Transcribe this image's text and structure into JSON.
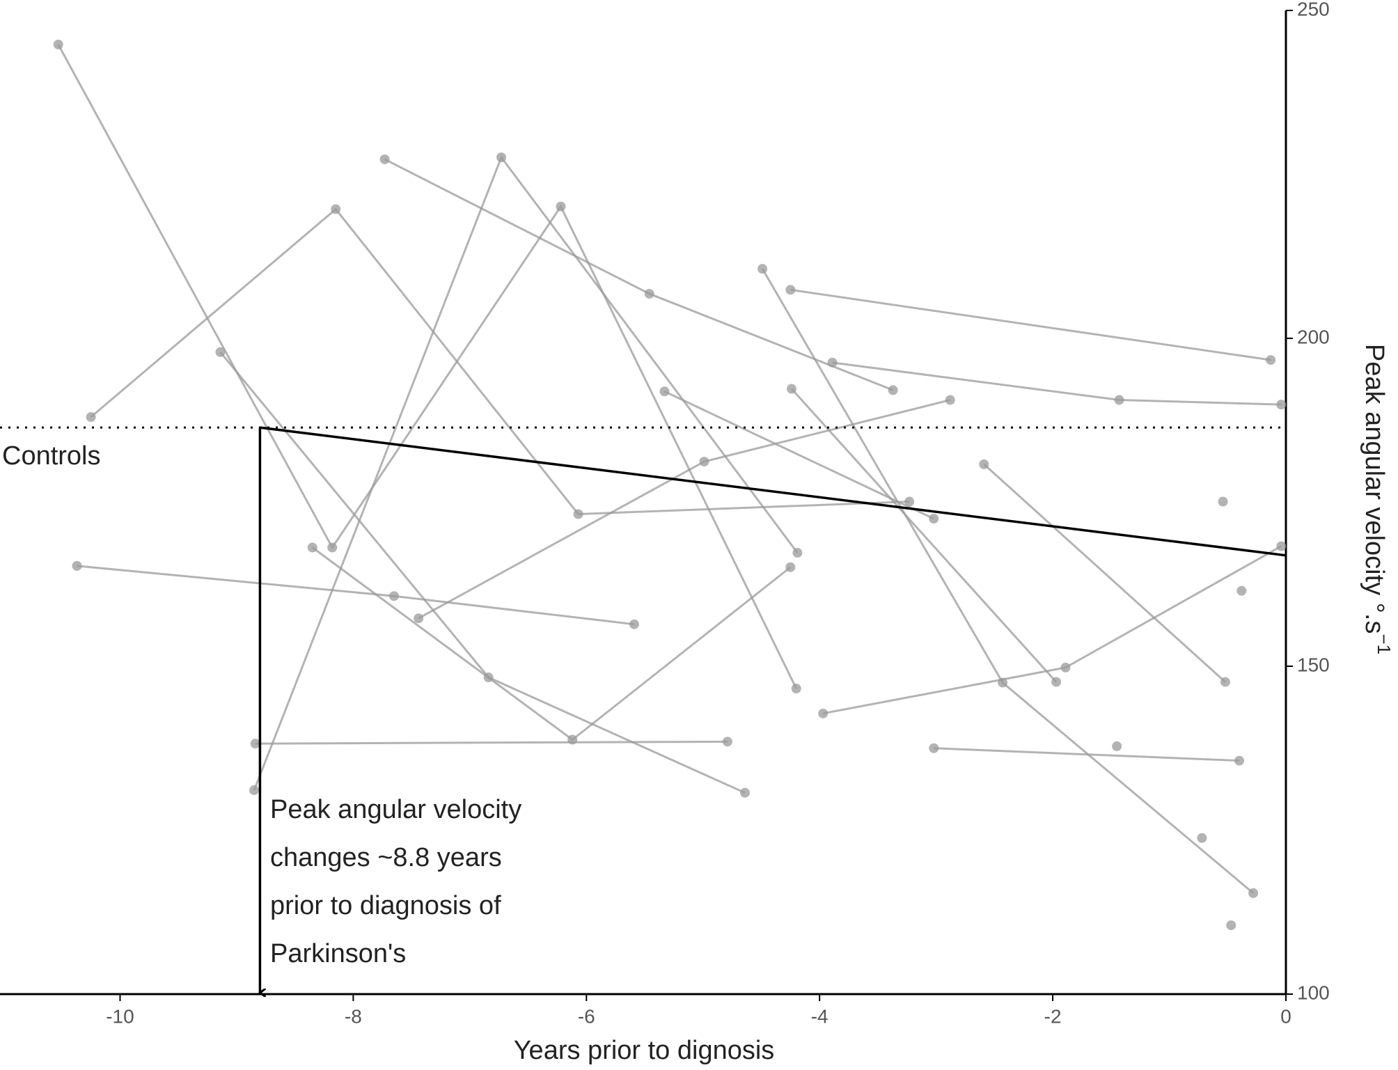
{
  "chart_data": {
    "type": "line",
    "x_label": "Years prior to dignosis",
    "y_label": "Peak angular velocity °.s",
    "y_label_superscript": "−1",
    "controls_label": "Controls",
    "annotation_lines": [
      "Peak angular velocity",
      "changes ~8.8 years",
      "prior to diagnosis of",
      "Parkinson's"
    ],
    "color": "#999999",
    "xlim": [
      -11.03,
      0
    ],
    "ylim": [
      100,
      250
    ],
    "xticks": [
      -10,
      -8,
      -6,
      -4,
      -2,
      0
    ],
    "yticks": [
      100,
      150,
      200,
      250
    ],
    "controls_y": 186.4,
    "fit": {
      "x": [
        -8.8,
        0
      ],
      "y": [
        186.4,
        166.9
      ]
    },
    "subjects": [
      {
        "x": [
          -10.53,
          -8.18,
          -6.22,
          -4.2
        ],
        "y": [
          244.8,
          168.1,
          220.1,
          146.6
        ]
      },
      {
        "x": [
          -10.25,
          -8.15,
          -6.07,
          -3.23
        ],
        "y": [
          188.0,
          219.7,
          173.2,
          175.1
        ]
      },
      {
        "x": [
          -9.14,
          -6.84,
          -4.64
        ],
        "y": [
          197.9,
          148.3,
          130.7
        ]
      },
      {
        "x": [
          -8.35,
          -6.12,
          -4.25
        ],
        "y": [
          168.1,
          138.8,
          165.1
        ]
      },
      {
        "x": [
          -7.73,
          -5.46,
          -3.37
        ],
        "y": [
          227.3,
          206.8,
          192.1
        ]
      },
      {
        "x": [
          -8.85,
          -6.73,
          -4.19
        ],
        "y": [
          131.1,
          227.6,
          167.3
        ]
      },
      {
        "x": [
          -4.49,
          -2.43,
          -0.28
        ],
        "y": [
          210.6,
          147.5,
          115.4
        ]
      },
      {
        "x": [
          -4.24,
          -1.97
        ],
        "y": [
          192.3,
          147.6
        ]
      },
      {
        "x": [
          -4.25,
          -0.13
        ],
        "y": [
          207.4,
          196.7
        ]
      },
      {
        "x": [
          -3.89,
          -1.43,
          -0.04
        ],
        "y": [
          196.3,
          190.6,
          189.9
        ]
      },
      {
        "x": [
          -5.33,
          -3.02
        ],
        "y": [
          191.9,
          172.5
        ]
      },
      {
        "x": [
          -2.59,
          -0.52
        ],
        "y": [
          180.8,
          147.6
        ]
      },
      {
        "x": [
          -7.44,
          -4.99,
          -2.88
        ],
        "y": [
          157.3,
          181.2,
          190.6
        ]
      },
      {
        "x": [
          -10.37,
          -7.65,
          -5.59
        ],
        "y": [
          165.3,
          160.7,
          156.4
        ]
      },
      {
        "x": [
          -8.84,
          -4.79
        ],
        "y": [
          138.2,
          138.5
        ]
      },
      {
        "x": [
          -3.97,
          -1.89,
          -0.04
        ],
        "y": [
          142.8,
          149.8,
          168.3
        ]
      },
      {
        "x": [
          -3.02,
          -0.4
        ],
        "y": [
          137.5,
          135.6
        ]
      },
      {
        "x": [
          -0.54
        ],
        "y": [
          175.1
        ]
      },
      {
        "x": [
          -0.38
        ],
        "y": [
          161.5
        ]
      },
      {
        "x": [
          -1.45
        ],
        "y": [
          137.8
        ]
      },
      {
        "x": [
          -0.72
        ],
        "y": [
          123.8
        ]
      },
      {
        "x": [
          -0.47
        ],
        "y": [
          110.5
        ]
      }
    ]
  }
}
